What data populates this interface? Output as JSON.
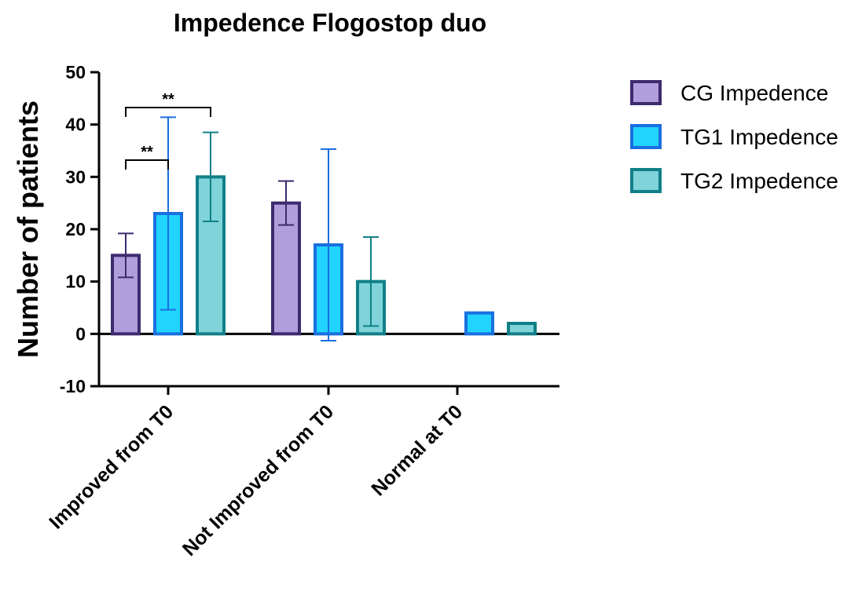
{
  "chart_data": {
    "type": "bar",
    "title": "Impedence Flogostop duo",
    "ylabel": "Number of patients",
    "xlabel": "",
    "ylim": [
      -10,
      50
    ],
    "yticks": [
      -10,
      0,
      10,
      20,
      30,
      40,
      50
    ],
    "categories": [
      "Improved from T0",
      "Not Improved from T0",
      "Normal at T0"
    ],
    "series": [
      {
        "name": "CG Impedence",
        "fill": "#b09ddb",
        "stroke": "#3d2a6e",
        "values": [
          15,
          25,
          0
        ],
        "err_low": [
          10.8,
          20.8,
          null
        ],
        "err_high": [
          19.2,
          29.2,
          null
        ]
      },
      {
        "name": "TG1 Impedence",
        "fill": "#21d4fd",
        "stroke": "#1a6fe0",
        "values": [
          23,
          17,
          4
        ],
        "err_low": [
          4.6,
          -1.3,
          null
        ],
        "err_high": [
          41.4,
          35.3,
          null
        ]
      },
      {
        "name": "TG2 Impedence",
        "fill": "#7fd3d9",
        "stroke": "#117f88",
        "values": [
          30,
          10,
          2
        ],
        "err_low": [
          21.5,
          1.5,
          null
        ],
        "err_high": [
          38.5,
          18.5,
          null
        ]
      }
    ],
    "significance": [
      {
        "label": "**",
        "from": [
          0,
          0
        ],
        "to": [
          0,
          1
        ]
      },
      {
        "label": "**",
        "from": [
          0,
          0
        ],
        "to": [
          0,
          2
        ]
      }
    ],
    "legend_position": "top-right",
    "grid": false
  }
}
